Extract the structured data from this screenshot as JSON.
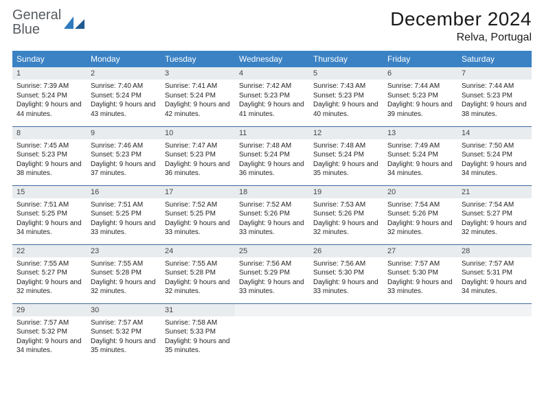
{
  "brand": {
    "word1": "General",
    "word2": "Blue"
  },
  "title": "December 2024",
  "location": "Relva, Portugal",
  "colors": {
    "header_bg": "#3b82c4",
    "header_text": "#ffffff",
    "row_border": "#3b6a99",
    "daynum_bg": "#e9ecef",
    "logo_gray": "#555a5f",
    "logo_blue": "#2f7bbf"
  },
  "daysOfWeek": [
    "Sunday",
    "Monday",
    "Tuesday",
    "Wednesday",
    "Thursday",
    "Friday",
    "Saturday"
  ],
  "weeks": [
    [
      {
        "n": "1",
        "sr": "7:39 AM",
        "ss": "5:24 PM",
        "dl": "9 hours and 44 minutes."
      },
      {
        "n": "2",
        "sr": "7:40 AM",
        "ss": "5:24 PM",
        "dl": "9 hours and 43 minutes."
      },
      {
        "n": "3",
        "sr": "7:41 AM",
        "ss": "5:24 PM",
        "dl": "9 hours and 42 minutes."
      },
      {
        "n": "4",
        "sr": "7:42 AM",
        "ss": "5:23 PM",
        "dl": "9 hours and 41 minutes."
      },
      {
        "n": "5",
        "sr": "7:43 AM",
        "ss": "5:23 PM",
        "dl": "9 hours and 40 minutes."
      },
      {
        "n": "6",
        "sr": "7:44 AM",
        "ss": "5:23 PM",
        "dl": "9 hours and 39 minutes."
      },
      {
        "n": "7",
        "sr": "7:44 AM",
        "ss": "5:23 PM",
        "dl": "9 hours and 38 minutes."
      }
    ],
    [
      {
        "n": "8",
        "sr": "7:45 AM",
        "ss": "5:23 PM",
        "dl": "9 hours and 38 minutes."
      },
      {
        "n": "9",
        "sr": "7:46 AM",
        "ss": "5:23 PM",
        "dl": "9 hours and 37 minutes."
      },
      {
        "n": "10",
        "sr": "7:47 AM",
        "ss": "5:23 PM",
        "dl": "9 hours and 36 minutes."
      },
      {
        "n": "11",
        "sr": "7:48 AM",
        "ss": "5:24 PM",
        "dl": "9 hours and 36 minutes."
      },
      {
        "n": "12",
        "sr": "7:48 AM",
        "ss": "5:24 PM",
        "dl": "9 hours and 35 minutes."
      },
      {
        "n": "13",
        "sr": "7:49 AM",
        "ss": "5:24 PM",
        "dl": "9 hours and 34 minutes."
      },
      {
        "n": "14",
        "sr": "7:50 AM",
        "ss": "5:24 PM",
        "dl": "9 hours and 34 minutes."
      }
    ],
    [
      {
        "n": "15",
        "sr": "7:51 AM",
        "ss": "5:25 PM",
        "dl": "9 hours and 34 minutes."
      },
      {
        "n": "16",
        "sr": "7:51 AM",
        "ss": "5:25 PM",
        "dl": "9 hours and 33 minutes."
      },
      {
        "n": "17",
        "sr": "7:52 AM",
        "ss": "5:25 PM",
        "dl": "9 hours and 33 minutes."
      },
      {
        "n": "18",
        "sr": "7:52 AM",
        "ss": "5:26 PM",
        "dl": "9 hours and 33 minutes."
      },
      {
        "n": "19",
        "sr": "7:53 AM",
        "ss": "5:26 PM",
        "dl": "9 hours and 32 minutes."
      },
      {
        "n": "20",
        "sr": "7:54 AM",
        "ss": "5:26 PM",
        "dl": "9 hours and 32 minutes."
      },
      {
        "n": "21",
        "sr": "7:54 AM",
        "ss": "5:27 PM",
        "dl": "9 hours and 32 minutes."
      }
    ],
    [
      {
        "n": "22",
        "sr": "7:55 AM",
        "ss": "5:27 PM",
        "dl": "9 hours and 32 minutes."
      },
      {
        "n": "23",
        "sr": "7:55 AM",
        "ss": "5:28 PM",
        "dl": "9 hours and 32 minutes."
      },
      {
        "n": "24",
        "sr": "7:55 AM",
        "ss": "5:28 PM",
        "dl": "9 hours and 32 minutes."
      },
      {
        "n": "25",
        "sr": "7:56 AM",
        "ss": "5:29 PM",
        "dl": "9 hours and 33 minutes."
      },
      {
        "n": "26",
        "sr": "7:56 AM",
        "ss": "5:30 PM",
        "dl": "9 hours and 33 minutes."
      },
      {
        "n": "27",
        "sr": "7:57 AM",
        "ss": "5:30 PM",
        "dl": "9 hours and 33 minutes."
      },
      {
        "n": "28",
        "sr": "7:57 AM",
        "ss": "5:31 PM",
        "dl": "9 hours and 34 minutes."
      }
    ],
    [
      {
        "n": "29",
        "sr": "7:57 AM",
        "ss": "5:32 PM",
        "dl": "9 hours and 34 minutes."
      },
      {
        "n": "30",
        "sr": "7:57 AM",
        "ss": "5:32 PM",
        "dl": "9 hours and 35 minutes."
      },
      {
        "n": "31",
        "sr": "7:58 AM",
        "ss": "5:33 PM",
        "dl": "9 hours and 35 minutes."
      },
      {
        "empty": true
      },
      {
        "empty": true
      },
      {
        "empty": true
      },
      {
        "empty": true
      }
    ]
  ],
  "labels": {
    "sunrise": "Sunrise: ",
    "sunset": "Sunset: ",
    "daylight": "Daylight: "
  }
}
